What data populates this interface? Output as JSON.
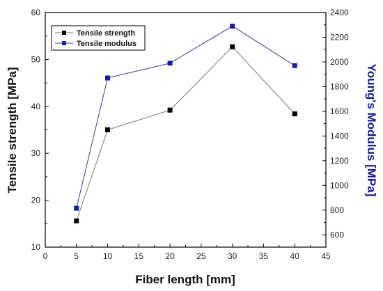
{
  "chart_data": {
    "type": "line",
    "xlabel": "Fiber length [mm]",
    "ylabel": "Tensile strength [MPa]",
    "y2label": "Young's Modulus [MPa]",
    "xlim": [
      0,
      45
    ],
    "ylim": [
      10,
      60
    ],
    "y2lim": [
      500,
      2400
    ],
    "x_ticks": [
      0,
      5,
      10,
      15,
      20,
      25,
      30,
      35,
      40,
      45
    ],
    "y_ticks": [
      10,
      20,
      30,
      40,
      50,
      60
    ],
    "y2_ticks": [
      600,
      800,
      1000,
      1200,
      1400,
      1600,
      1800,
      2000,
      2200,
      2400
    ],
    "grid": false,
    "legend_position": "top-left",
    "series": [
      {
        "name": "Tensile strength",
        "axis": "left",
        "color": "#000000",
        "line_color": "#777777",
        "marker": "square",
        "x": [
          5,
          10,
          20,
          30,
          40
        ],
        "y": [
          15.6,
          35.0,
          39.2,
          52.7,
          38.4
        ]
      },
      {
        "name": "Tensile modulus",
        "axis": "right",
        "color": "#1a1aa6",
        "line_color": "#3a3aa0",
        "marker": "square",
        "x": [
          5,
          10,
          20,
          30,
          40
        ],
        "y": [
          815,
          1870,
          1990,
          2290,
          1970
        ]
      }
    ],
    "ylabel_color": "#111111",
    "y2label_color": "#1a1a9c"
  }
}
